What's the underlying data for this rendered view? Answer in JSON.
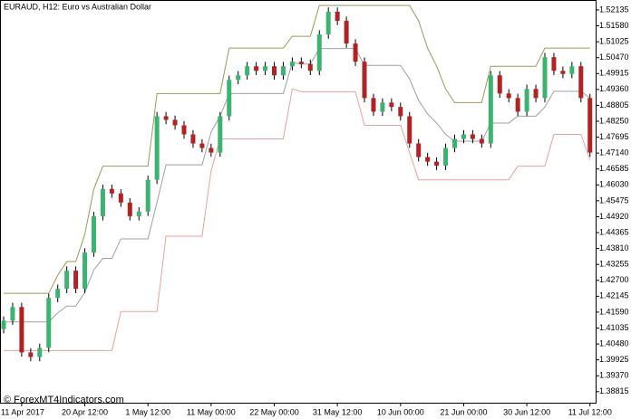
{
  "chart_data": {
    "type": "candlestick",
    "title": "EURAUD, H12:  Euro vs Australian Dollar",
    "watermark": "© ForexMT4Indicators.com",
    "categories": [
      null,
      null,
      "11 Apr 2017",
      null,
      null,
      null,
      null,
      null,
      null,
      "20 Apr 12:00",
      null,
      null,
      null,
      null,
      null,
      null,
      "1 May 12:00",
      null,
      null,
      null,
      null,
      null,
      null,
      "11 May 00:00",
      null,
      null,
      null,
      null,
      null,
      null,
      "22 May 00:00",
      null,
      null,
      null,
      null,
      null,
      null,
      "31 May 12:00",
      null,
      null,
      null,
      null,
      null,
      null,
      "10 Jun 00:00",
      null,
      null,
      null,
      null,
      null,
      null,
      "21 Jun 00:00",
      null,
      null,
      null,
      null,
      null,
      null,
      "30 Jun 12:00",
      null,
      null,
      null,
      null,
      null,
      null,
      "11 Jul 12:00"
    ],
    "open": [
      1.41,
      1.41293,
      1.41769,
      1.40184,
      1.40026,
      1.40343,
      1.42086,
      1.42403,
      1.43037,
      1.42403,
      1.43671,
      1.44939,
      1.4589,
      1.45731,
      1.45414,
      1.44939,
      1.45097,
      1.46207,
      1.48426,
      1.483,
      1.48109,
      1.47792,
      1.47475,
      1.47317,
      1.47158,
      1.48426,
      1.49694,
      1.49853,
      1.5017,
      1.50011,
      1.5017,
      1.49853,
      1.5017,
      1.50328,
      1.5025,
      1.50011,
      1.51279,
      1.52072,
      1.51755,
      1.50962,
      1.50328,
      1.4906,
      1.48585,
      1.48902,
      1.4875,
      1.48426,
      1.47475,
      1.47,
      1.46841,
      1.467,
      1.47317,
      1.47634,
      1.47792,
      1.47634,
      1.47475,
      1.49853,
      1.49219,
      1.4906,
      1.48585,
      1.49377,
      1.4906,
      1.50487,
      1.50011,
      1.499,
      1.5017,
      1.4906
    ],
    "high": [
      1.41443,
      1.41919,
      1.41919,
      1.40334,
      1.40493,
      1.42236,
      1.42553,
      1.43187,
      1.43187,
      1.43821,
      1.45089,
      1.4604,
      1.4604,
      1.45881,
      1.45564,
      1.45247,
      1.46357,
      1.48576,
      1.48576,
      1.4845,
      1.48259,
      1.47942,
      1.47625,
      1.47467,
      1.48576,
      1.49844,
      1.50003,
      1.5032,
      1.5032,
      1.5032,
      1.5032,
      1.5032,
      1.50478,
      1.50478,
      1.504,
      1.51429,
      1.52222,
      1.52222,
      1.51905,
      1.51112,
      1.50478,
      1.4921,
      1.49052,
      1.49052,
      1.489,
      1.48576,
      1.47625,
      1.4715,
      1.46991,
      1.47467,
      1.47784,
      1.47942,
      1.47942,
      1.47784,
      1.50003,
      1.50003,
      1.49369,
      1.4921,
      1.49527,
      1.49527,
      1.50637,
      1.50637,
      1.50161,
      1.5032,
      1.5032,
      1.4921
    ],
    "low": [
      1.4085,
      1.41143,
      1.40034,
      1.39876,
      1.39876,
      1.40193,
      1.41936,
      1.42253,
      1.42253,
      1.42253,
      1.43521,
      1.44789,
      1.45581,
      1.45264,
      1.44789,
      1.44789,
      1.44947,
      1.46057,
      1.4815,
      1.47959,
      1.47642,
      1.47325,
      1.47167,
      1.47008,
      1.47008,
      1.48276,
      1.49544,
      1.49703,
      1.49861,
      1.49861,
      1.49703,
      1.49703,
      1.5002,
      1.501,
      1.49861,
      1.49861,
      1.51129,
      1.51605,
      1.50812,
      1.50178,
      1.4891,
      1.48435,
      1.48435,
      1.486,
      1.48276,
      1.47325,
      1.4685,
      1.46691,
      1.4655,
      1.4655,
      1.47167,
      1.47484,
      1.47484,
      1.47325,
      1.47325,
      1.49069,
      1.4891,
      1.48435,
      1.48435,
      1.4891,
      1.4891,
      1.49861,
      1.4975,
      1.4975,
      1.4891,
      1.47008
    ],
    "close": [
      1.41293,
      1.41769,
      1.40184,
      1.40026,
      1.40343,
      1.42086,
      1.42403,
      1.43037,
      1.42403,
      1.43671,
      1.44939,
      1.4589,
      1.45731,
      1.45414,
      1.44939,
      1.45097,
      1.46207,
      1.48426,
      1.483,
      1.48109,
      1.47792,
      1.47475,
      1.47317,
      1.47158,
      1.48426,
      1.49694,
      1.49853,
      1.5017,
      1.50011,
      1.5017,
      1.49853,
      1.5017,
      1.50328,
      1.5025,
      1.50011,
      1.51279,
      1.52072,
      1.51755,
      1.50962,
      1.50328,
      1.4906,
      1.48585,
      1.48902,
      1.4875,
      1.48426,
      1.47475,
      1.47,
      1.46841,
      1.467,
      1.47317,
      1.47634,
      1.47792,
      1.47634,
      1.47475,
      1.49853,
      1.49219,
      1.4906,
      1.48585,
      1.49377,
      1.4906,
      1.50487,
      1.50011,
      1.499,
      1.5017,
      1.4906,
      1.47158
    ],
    "up_color": "#3cb371",
    "down_color": "#b22222",
    "wick_color": "#000000",
    "series": [
      {
        "color": "#9a9a5a",
        "values": [
          1.42245,
          1.42245,
          1.42245,
          1.42245,
          1.42245,
          1.42245,
          1.42879,
          1.43354,
          1.43354,
          1.44305,
          1.4589,
          1.46683,
          1.46683,
          1.46683,
          1.46683,
          1.46683,
          1.46683,
          1.49219,
          1.49219,
          1.49219,
          1.49219,
          1.49219,
          1.49219,
          1.49219,
          1.49219,
          1.50804,
          1.50804,
          1.50804,
          1.50804,
          1.50804,
          1.50804,
          1.50804,
          1.51216,
          1.51216,
          1.51216,
          1.52294,
          1.52294,
          1.52294,
          1.52294,
          1.52294,
          1.52294,
          1.52294,
          1.52294,
          1.52294,
          1.52294,
          1.52294,
          1.51755,
          1.50804,
          1.5017,
          1.49377,
          1.48902,
          1.48902,
          1.48902,
          1.48902,
          1.5017,
          1.5017,
          1.5017,
          1.5017,
          1.5017,
          1.5017,
          1.50804,
          1.50804,
          1.50804,
          1.50804,
          1.50804,
          1.50804
        ]
      },
      {
        "color": "#a0a0a0",
        "values": [
          1.41247,
          1.41247,
          1.41247,
          1.41247,
          1.41247,
          1.41247,
          1.41564,
          1.41801,
          1.41801,
          1.42277,
          1.43069,
          1.43466,
          1.43466,
          1.44147,
          1.44147,
          1.44147,
          1.44147,
          1.45415,
          1.46731,
          1.46731,
          1.46731,
          1.46731,
          1.46731,
          1.47872,
          1.48427,
          1.49219,
          1.49219,
          1.49219,
          1.49219,
          1.49219,
          1.49219,
          1.49219,
          1.50297,
          1.50249,
          1.50249,
          1.50788,
          1.50788,
          1.50788,
          1.50788,
          1.50788,
          1.50202,
          1.50202,
          1.50202,
          1.50202,
          1.50202,
          1.49726,
          1.48981,
          1.48506,
          1.48189,
          1.47792,
          1.47555,
          1.47555,
          1.47555,
          1.47555,
          1.48189,
          1.48189,
          1.48189,
          1.48427,
          1.48427,
          1.48427,
          1.48744,
          1.49298,
          1.49298,
          1.49298,
          1.49298,
          1.49061
        ]
      },
      {
        "color": "#e8a0a0",
        "values": [
          1.40248,
          1.40248,
          1.40248,
          1.40248,
          1.40248,
          1.40248,
          1.40248,
          1.40248,
          1.40248,
          1.40248,
          1.40248,
          1.40248,
          1.40248,
          1.4161,
          1.4161,
          1.4161,
          1.4161,
          1.4161,
          1.44242,
          1.44242,
          1.44242,
          1.44242,
          1.44242,
          1.46524,
          1.47634,
          1.47634,
          1.47634,
          1.47634,
          1.47634,
          1.47634,
          1.47634,
          1.47634,
          1.49377,
          1.49282,
          1.49282,
          1.49282,
          1.49282,
          1.49282,
          1.49282,
          1.49282,
          1.48109,
          1.48109,
          1.48109,
          1.48109,
          1.48109,
          1.47158,
          1.46207,
          1.46207,
          1.46207,
          1.46207,
          1.46207,
          1.46207,
          1.46207,
          1.46207,
          1.46207,
          1.46207,
          1.46207,
          1.46683,
          1.46683,
          1.46683,
          1.46683,
          1.47792,
          1.47792,
          1.47792,
          1.47792,
          1.469
        ]
      }
    ],
    "ylim": [
      1.3843,
      1.5245
    ],
    "yticks": [
      1.52135,
      {
        "value": 1.5158,
        "label": "1.51580"
      },
      1.51025,
      {
        "value": 1.5047,
        "label": "1.50470"
      },
      1.49915,
      {
        "value": 1.4936,
        "label": "1.49360"
      },
      1.48805,
      {
        "value": 1.4825,
        "label": "1.48250"
      },
      1.47695,
      {
        "value": 1.4714,
        "label": "1.47140"
      },
      1.46585,
      {
        "value": 1.4603,
        "label": "1.46030"
      },
      1.45475,
      {
        "value": 1.4492,
        "label": "1.44920"
      },
      1.44365,
      {
        "value": 1.4381,
        "label": "1.43810"
      },
      1.43255,
      {
        "value": 1.427,
        "label": "1.42700"
      },
      1.42145,
      {
        "value": 1.4159,
        "label": "1.41590"
      },
      1.41035,
      {
        "value": 1.4048,
        "label": "1.40480"
      },
      1.39925,
      {
        "value": 1.3937,
        "label": "1.39370"
      },
      1.38815
    ]
  }
}
